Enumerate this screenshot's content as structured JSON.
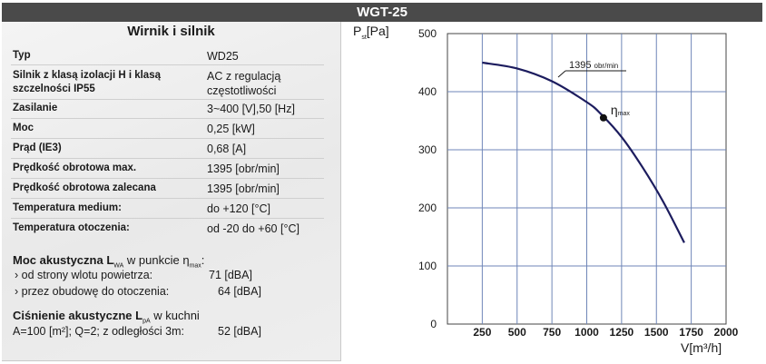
{
  "header": {
    "title": "WGT-25"
  },
  "specs": {
    "title": "Wirnik i silnik",
    "rows": [
      {
        "label": "Typ",
        "value": "WD25"
      },
      {
        "label": "Silnik z klasą izolacji H i klasą szczelności IP55",
        "value": "AC z regulacją częstotliwości"
      },
      {
        "label": "Zasilanie",
        "value": "3~400 [V],50 [Hz]"
      },
      {
        "label": "Moc",
        "value": "0,25 [kW]"
      },
      {
        "label": "Prąd (IE3)",
        "value": "0,68 [A]"
      },
      {
        "label": "Prędkość obrotowa max.",
        "value": "1395 [obr/min]"
      },
      {
        "label": "Prędkość obrotowa zalecana",
        "value": "1395 [obr/min]"
      },
      {
        "label": "Temperatura medium:",
        "value": "do +120 [°C]"
      },
      {
        "label": "Temperatura otoczenia:",
        "value": "od -20 do +60 [°C]"
      }
    ]
  },
  "acoustic_power": {
    "title_prefix": "Moc akustyczna L",
    "title_sub": "WA",
    "title_mid": " w punkcie η",
    "title_sub2": "max",
    "title_suffix": ":",
    "lines": [
      {
        "label": "› od strony wlotu powietrza:",
        "value": "71 [dBA]"
      },
      {
        "label": "› przez obudowę do otoczenia:",
        "value": "64 [dBA]"
      }
    ]
  },
  "acoustic_pressure": {
    "title_prefix": "Ciśnienie akustyczne L",
    "title_sub": "pA",
    "title_suffix": " w kuchni",
    "line_label": "A=100 [m²]; Q=2; z odległości 3m:",
    "line_value": "52 [dBA]"
  },
  "chart_data": {
    "type": "line",
    "ylabel": "Pst[Pa]",
    "ylabel_main": "P",
    "ylabel_sub": "st",
    "ylabel_unit": "[Pa]",
    "xlabel": "V[m³/h]",
    "xlim": [
      0,
      2000
    ],
    "ylim": [
      0,
      500
    ],
    "x_ticks": [
      250,
      500,
      750,
      1000,
      1250,
      1500,
      1750,
      2000
    ],
    "x_tick_labels": [
      "250",
      "500",
      "750",
      "1000",
      "1250",
      "1500",
      "1750",
      "2000"
    ],
    "y_ticks": [
      0,
      100,
      200,
      300,
      400,
      500
    ],
    "y_tick_labels": [
      "0",
      "100",
      "200",
      "300",
      "400",
      "500"
    ],
    "grid": true,
    "series": [
      {
        "name": "1395 obr/min",
        "label_value": "1395",
        "label_unit": "obr/min",
        "color": "#1c1c5e",
        "x": [
          250,
          500,
          750,
          1000,
          1100,
          1250,
          1400,
          1550,
          1700
        ],
        "y": [
          450,
          440,
          418,
          382,
          362,
          322,
          270,
          210,
          140
        ]
      }
    ],
    "point": {
      "label": "η",
      "label_sub": "max",
      "x": 1120,
      "y": 355
    }
  }
}
